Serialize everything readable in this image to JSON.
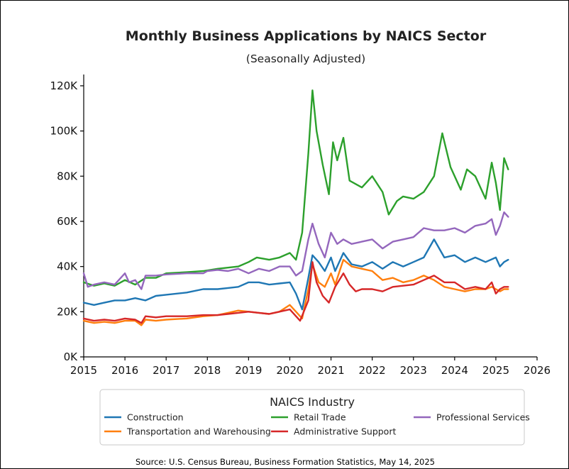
{
  "chart_data": {
    "type": "line",
    "title": "Monthly Business Applications by NAICS Sector",
    "subtitle": "(Seasonally Adjusted)",
    "xlabel": "",
    "ylabel": "",
    "xlim": [
      2015,
      2026
    ],
    "ylim": [
      0,
      125000
    ],
    "x_ticks": [
      2015,
      2016,
      2017,
      2018,
      2019,
      2020,
      2021,
      2022,
      2023,
      2024,
      2025,
      2026
    ],
    "y_ticks": [
      {
        "value": 0,
        "label": "0K"
      },
      {
        "value": 20000,
        "label": "20K"
      },
      {
        "value": 40000,
        "label": "40K"
      },
      {
        "value": 60000,
        "label": "60K"
      },
      {
        "value": 80000,
        "label": "80K"
      },
      {
        "value": 100000,
        "label": "100K"
      },
      {
        "value": 120000,
        "label": "120K"
      }
    ],
    "grid": false,
    "legend": {
      "title": "NAICS Industry",
      "placement": "bottom"
    },
    "source": "Source: U.S. Census Bureau, Business Formation Statistics, May 14, 2025",
    "series": [
      {
        "name": "Construction",
        "color": "#1f77b4",
        "points": [
          [
            2015.0,
            24000
          ],
          [
            2015.25,
            23000
          ],
          [
            2015.5,
            24000
          ],
          [
            2015.75,
            25000
          ],
          [
            2016.0,
            25000
          ],
          [
            2016.25,
            26000
          ],
          [
            2016.5,
            25000
          ],
          [
            2016.75,
            27000
          ],
          [
            2017.0,
            27500
          ],
          [
            2017.5,
            28500
          ],
          [
            2017.9,
            30000
          ],
          [
            2018.25,
            30000
          ],
          [
            2018.5,
            30500
          ],
          [
            2018.75,
            31000
          ],
          [
            2019.0,
            33000
          ],
          [
            2019.25,
            33000
          ],
          [
            2019.5,
            32000
          ],
          [
            2019.75,
            32500
          ],
          [
            2020.0,
            33000
          ],
          [
            2020.15,
            28000
          ],
          [
            2020.3,
            21000
          ],
          [
            2020.45,
            35000
          ],
          [
            2020.55,
            45000
          ],
          [
            2020.7,
            42000
          ],
          [
            2020.85,
            38000
          ],
          [
            2021.0,
            44000
          ],
          [
            2021.1,
            38000
          ],
          [
            2021.3,
            46000
          ],
          [
            2021.5,
            41000
          ],
          [
            2021.75,
            40000
          ],
          [
            2022.0,
            42000
          ],
          [
            2022.25,
            39000
          ],
          [
            2022.5,
            42000
          ],
          [
            2022.75,
            40000
          ],
          [
            2023.0,
            42000
          ],
          [
            2023.25,
            44000
          ],
          [
            2023.5,
            52000
          ],
          [
            2023.75,
            44000
          ],
          [
            2024.0,
            45000
          ],
          [
            2024.25,
            42000
          ],
          [
            2024.5,
            44000
          ],
          [
            2024.75,
            42000
          ],
          [
            2025.0,
            44000
          ],
          [
            2025.1,
            40000
          ],
          [
            2025.2,
            42000
          ],
          [
            2025.3,
            43000
          ]
        ]
      },
      {
        "name": "Retail Trade",
        "color": "#2ca02c",
        "points": [
          [
            2015.0,
            33000
          ],
          [
            2015.25,
            31500
          ],
          [
            2015.5,
            32500
          ],
          [
            2015.75,
            31500
          ],
          [
            2016.0,
            34000
          ],
          [
            2016.25,
            32000
          ],
          [
            2016.5,
            35000
          ],
          [
            2016.75,
            35000
          ],
          [
            2017.0,
            37000
          ],
          [
            2017.5,
            37500
          ],
          [
            2017.9,
            38000
          ],
          [
            2018.25,
            39000
          ],
          [
            2018.5,
            39500
          ],
          [
            2018.75,
            40000
          ],
          [
            2019.0,
            42000
          ],
          [
            2019.2,
            44000
          ],
          [
            2019.5,
            43000
          ],
          [
            2019.75,
            44000
          ],
          [
            2020.0,
            46000
          ],
          [
            2020.15,
            43000
          ],
          [
            2020.3,
            55000
          ],
          [
            2020.45,
            90000
          ],
          [
            2020.55,
            118000
          ],
          [
            2020.65,
            100000
          ],
          [
            2020.8,
            85000
          ],
          [
            2020.95,
            72000
          ],
          [
            2021.05,
            95000
          ],
          [
            2021.15,
            87000
          ],
          [
            2021.3,
            97000
          ],
          [
            2021.45,
            78000
          ],
          [
            2021.75,
            75000
          ],
          [
            2022.0,
            80000
          ],
          [
            2022.25,
            73000
          ],
          [
            2022.4,
            63000
          ],
          [
            2022.6,
            69000
          ],
          [
            2022.75,
            71000
          ],
          [
            2023.0,
            70000
          ],
          [
            2023.25,
            73000
          ],
          [
            2023.5,
            80000
          ],
          [
            2023.7,
            99000
          ],
          [
            2023.9,
            84000
          ],
          [
            2024.0,
            80000
          ],
          [
            2024.15,
            74000
          ],
          [
            2024.3,
            83000
          ],
          [
            2024.5,
            80000
          ],
          [
            2024.75,
            70000
          ],
          [
            2024.9,
            86000
          ],
          [
            2025.0,
            77000
          ],
          [
            2025.1,
            65000
          ],
          [
            2025.2,
            88000
          ],
          [
            2025.3,
            83000
          ]
        ]
      },
      {
        "name": "Professional Services",
        "color": "#9467bd",
        "points": [
          [
            2015.0,
            37000
          ],
          [
            2015.1,
            31000
          ],
          [
            2015.25,
            32000
          ],
          [
            2015.5,
            33000
          ],
          [
            2015.75,
            32000
          ],
          [
            2016.0,
            37000
          ],
          [
            2016.1,
            33000
          ],
          [
            2016.25,
            34000
          ],
          [
            2016.4,
            30000
          ],
          [
            2016.5,
            36000
          ],
          [
            2016.75,
            36000
          ],
          [
            2017.0,
            36500
          ],
          [
            2017.5,
            37000
          ],
          [
            2017.9,
            37000
          ],
          [
            2018.0,
            38000
          ],
          [
            2018.25,
            38500
          ],
          [
            2018.5,
            38000
          ],
          [
            2018.75,
            39000
          ],
          [
            2019.0,
            37000
          ],
          [
            2019.25,
            39000
          ],
          [
            2019.5,
            38000
          ],
          [
            2019.75,
            40000
          ],
          [
            2020.0,
            40000
          ],
          [
            2020.15,
            36000
          ],
          [
            2020.3,
            38000
          ],
          [
            2020.45,
            52000
          ],
          [
            2020.55,
            59000
          ],
          [
            2020.7,
            50000
          ],
          [
            2020.85,
            44000
          ],
          [
            2021.0,
            55000
          ],
          [
            2021.15,
            50000
          ],
          [
            2021.3,
            52000
          ],
          [
            2021.5,
            50000
          ],
          [
            2021.75,
            51000
          ],
          [
            2022.0,
            52000
          ],
          [
            2022.25,
            48000
          ],
          [
            2022.5,
            51000
          ],
          [
            2022.75,
            52000
          ],
          [
            2023.0,
            53000
          ],
          [
            2023.25,
            57000
          ],
          [
            2023.5,
            56000
          ],
          [
            2023.75,
            56000
          ],
          [
            2024.0,
            57000
          ],
          [
            2024.25,
            55000
          ],
          [
            2024.5,
            58000
          ],
          [
            2024.75,
            59000
          ],
          [
            2024.9,
            61000
          ],
          [
            2025.0,
            54000
          ],
          [
            2025.1,
            58000
          ],
          [
            2025.2,
            64000
          ],
          [
            2025.3,
            62000
          ]
        ]
      },
      {
        "name": "Transportation and Warehousing",
        "color": "#ff7f0e",
        "points": [
          [
            2015.0,
            16000
          ],
          [
            2015.25,
            15000
          ],
          [
            2015.5,
            15500
          ],
          [
            2015.75,
            15000
          ],
          [
            2016.0,
            16000
          ],
          [
            2016.25,
            16000
          ],
          [
            2016.4,
            14000
          ],
          [
            2016.5,
            16500
          ],
          [
            2016.75,
            16000
          ],
          [
            2017.0,
            16500
          ],
          [
            2017.5,
            17000
          ],
          [
            2017.9,
            18000
          ],
          [
            2018.25,
            18500
          ],
          [
            2018.5,
            19500
          ],
          [
            2018.75,
            20500
          ],
          [
            2019.0,
            20000
          ],
          [
            2019.25,
            19500
          ],
          [
            2019.5,
            19000
          ],
          [
            2019.75,
            20000
          ],
          [
            2020.0,
            23000
          ],
          [
            2020.15,
            20000
          ],
          [
            2020.3,
            17000
          ],
          [
            2020.45,
            30000
          ],
          [
            2020.55,
            41000
          ],
          [
            2020.7,
            33000
          ],
          [
            2020.85,
            31000
          ],
          [
            2021.0,
            37000
          ],
          [
            2021.1,
            32000
          ],
          [
            2021.3,
            43000
          ],
          [
            2021.5,
            40000
          ],
          [
            2021.75,
            39000
          ],
          [
            2022.0,
            38000
          ],
          [
            2022.25,
            34000
          ],
          [
            2022.5,
            35000
          ],
          [
            2022.75,
            33000
          ],
          [
            2023.0,
            34000
          ],
          [
            2023.25,
            36000
          ],
          [
            2023.5,
            34000
          ],
          [
            2023.75,
            31000
          ],
          [
            2024.0,
            30000
          ],
          [
            2024.25,
            29000
          ],
          [
            2024.5,
            30000
          ],
          [
            2024.75,
            30000
          ],
          [
            2024.9,
            31000
          ],
          [
            2025.0,
            30000
          ],
          [
            2025.1,
            29000
          ],
          [
            2025.2,
            30000
          ],
          [
            2025.3,
            30000
          ]
        ]
      },
      {
        "name": "Administrative Support",
        "color": "#d62728",
        "points": [
          [
            2015.0,
            17000
          ],
          [
            2015.25,
            16000
          ],
          [
            2015.5,
            16500
          ],
          [
            2015.75,
            16000
          ],
          [
            2016.0,
            17000
          ],
          [
            2016.25,
            16500
          ],
          [
            2016.4,
            15000
          ],
          [
            2016.5,
            18000
          ],
          [
            2016.75,
            17500
          ],
          [
            2017.0,
            18000
          ],
          [
            2017.5,
            18000
          ],
          [
            2017.9,
            18500
          ],
          [
            2018.25,
            18500
          ],
          [
            2018.5,
            19000
          ],
          [
            2018.75,
            19500
          ],
          [
            2019.0,
            20000
          ],
          [
            2019.25,
            19500
          ],
          [
            2019.5,
            19000
          ],
          [
            2019.75,
            20000
          ],
          [
            2020.0,
            21000
          ],
          [
            2020.15,
            18000
          ],
          [
            2020.25,
            16000
          ],
          [
            2020.45,
            25000
          ],
          [
            2020.55,
            42000
          ],
          [
            2020.65,
            33000
          ],
          [
            2020.8,
            27000
          ],
          [
            2020.95,
            24000
          ],
          [
            2021.1,
            31000
          ],
          [
            2021.3,
            37000
          ],
          [
            2021.45,
            32000
          ],
          [
            2021.6,
            29000
          ],
          [
            2021.75,
            30000
          ],
          [
            2022.0,
            30000
          ],
          [
            2022.25,
            29000
          ],
          [
            2022.5,
            31000
          ],
          [
            2022.75,
            31500
          ],
          [
            2023.0,
            32000
          ],
          [
            2023.25,
            34000
          ],
          [
            2023.5,
            36000
          ],
          [
            2023.75,
            33000
          ],
          [
            2024.0,
            33000
          ],
          [
            2024.25,
            30000
          ],
          [
            2024.5,
            31000
          ],
          [
            2024.75,
            30000
          ],
          [
            2024.9,
            33000
          ],
          [
            2025.0,
            28000
          ],
          [
            2025.1,
            30000
          ],
          [
            2025.2,
            31000
          ],
          [
            2025.3,
            31000
          ]
        ]
      }
    ]
  }
}
